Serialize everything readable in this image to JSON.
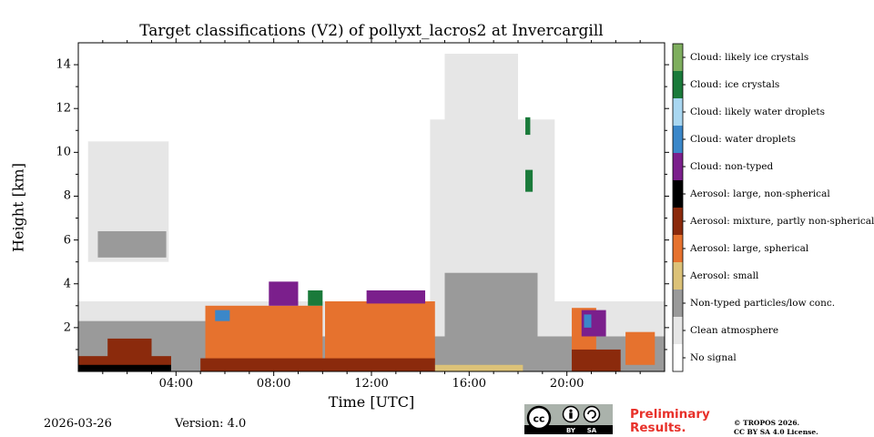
{
  "chart_data": {
    "type": "heatmap",
    "title": "Target classifications (V2) of pollyxt_lacros2 at Invercargill",
    "xlabel": "Time [UTC]",
    "ylabel": "Height [km]",
    "xlim_hours": [
      0,
      24
    ],
    "ylim_km": [
      0,
      15
    ],
    "x_ticks": [
      {
        "hour": 4,
        "label": "04:00"
      },
      {
        "hour": 8,
        "label": "08:00"
      },
      {
        "hour": 12,
        "label": "12:00"
      },
      {
        "hour": 16,
        "label": "16:00"
      },
      {
        "hour": 20,
        "label": "20:00"
      }
    ],
    "y_ticks": [
      {
        "km": 2,
        "label": "2"
      },
      {
        "km": 4,
        "label": "4"
      },
      {
        "km": 6,
        "label": "6"
      },
      {
        "km": 8,
        "label": "8"
      },
      {
        "km": 10,
        "label": "10"
      },
      {
        "km": 12,
        "label": "12"
      },
      {
        "km": 14,
        "label": "14"
      }
    ],
    "classes": [
      {
        "label": "No signal",
        "color": "#ffffff"
      },
      {
        "label": "Clean atmosphere",
        "color": "#e6e6e6"
      },
      {
        "label": "Non-typed particles/low conc.",
        "color": "#9a9a9a"
      },
      {
        "label": "Aerosol: small",
        "color": "#dcc278"
      },
      {
        "label": "Aerosol: large, spherical",
        "color": "#e6722e"
      },
      {
        "label": "Aerosol: mixture, partly non-spherical",
        "color": "#8b2a0c"
      },
      {
        "label": "Aerosol: large, non-spherical",
        "color": "#000000"
      },
      {
        "label": "Cloud: non-typed",
        "color": "#7b1f8c"
      },
      {
        "label": "Cloud: water droplets",
        "color": "#3b87c9"
      },
      {
        "label": "Cloud: likely water droplets",
        "color": "#a9d7f1"
      },
      {
        "label": "Cloud: ice crystals",
        "color": "#1a7a3a"
      },
      {
        "label": "Cloud: likely ice crystals",
        "color": "#7eae5e"
      }
    ],
    "regions": [
      {
        "class": 1,
        "t0": 0,
        "t1": 24,
        "h0": 0,
        "h1": 3.2
      },
      {
        "class": 1,
        "t0": 14.4,
        "t1": 19.5,
        "h0": 0,
        "h1": 11.5
      },
      {
        "class": 1,
        "t0": 15.0,
        "t1": 18.0,
        "h0": 9,
        "h1": 14.5
      },
      {
        "class": 1,
        "t0": 0.4,
        "t1": 3.7,
        "h0": 5,
        "h1": 10.5
      },
      {
        "class": 2,
        "t0": 0,
        "t1": 24,
        "h0": 0,
        "h1": 1.6
      },
      {
        "class": 2,
        "t0": 0,
        "t1": 5.5,
        "h0": 0,
        "h1": 2.3
      },
      {
        "class": 2,
        "t0": 0.8,
        "t1": 3.6,
        "h0": 5.2,
        "h1": 6.4
      },
      {
        "class": 2,
        "t0": 15.0,
        "t1": 18.8,
        "h0": 0.8,
        "h1": 4.5
      },
      {
        "class": 3,
        "t0": 14.6,
        "t1": 18.2,
        "h0": 0,
        "h1": 0.3
      },
      {
        "class": 4,
        "t0": 5.2,
        "t1": 10.0,
        "h0": 0.3,
        "h1": 3.0
      },
      {
        "class": 4,
        "t0": 10.1,
        "t1": 14.6,
        "h0": 0.4,
        "h1": 3.2
      },
      {
        "class": 4,
        "t0": 20.2,
        "t1": 21.2,
        "h0": 0.5,
        "h1": 2.9
      },
      {
        "class": 4,
        "t0": 22.4,
        "t1": 23.6,
        "h0": 0.3,
        "h1": 1.8
      },
      {
        "class": 5,
        "t0": 0,
        "t1": 3.8,
        "h0": 0,
        "h1": 0.7
      },
      {
        "class": 5,
        "t0": 5.0,
        "t1": 14.6,
        "h0": 0,
        "h1": 0.6
      },
      {
        "class": 5,
        "t0": 1.2,
        "t1": 3.0,
        "h0": 0.4,
        "h1": 1.5
      },
      {
        "class": 5,
        "t0": 20.2,
        "t1": 22.2,
        "h0": 0,
        "h1": 1.0
      },
      {
        "class": 6,
        "t0": 0,
        "t1": 3.8,
        "h0": 0,
        "h1": 0.3
      },
      {
        "class": 7,
        "t0": 7.8,
        "t1": 9.0,
        "h0": 3.0,
        "h1": 4.1
      },
      {
        "class": 7,
        "t0": 11.8,
        "t1": 14.2,
        "h0": 3.1,
        "h1": 3.7
      },
      {
        "class": 7,
        "t0": 20.6,
        "t1": 21.6,
        "h0": 1.6,
        "h1": 2.8
      },
      {
        "class": 8,
        "t0": 5.6,
        "t1": 6.2,
        "h0": 2.3,
        "h1": 2.8
      },
      {
        "class": 8,
        "t0": 20.7,
        "t1": 21.0,
        "h0": 2.0,
        "h1": 2.6
      },
      {
        "class": 10,
        "t0": 9.4,
        "t1": 10.0,
        "h0": 3.0,
        "h1": 3.7
      },
      {
        "class": 10,
        "t0": 18.3,
        "t1": 18.5,
        "h0": 10.8,
        "h1": 11.6
      },
      {
        "class": 10,
        "t0": 18.3,
        "t1": 18.6,
        "h0": 8.2,
        "h1": 9.2
      }
    ]
  },
  "footer": {
    "date": "2026-03-26",
    "version": "Version: 4.0",
    "preliminary_line1": "Preliminary",
    "preliminary_line2": "Results.",
    "copyright_line1": "© TROPOS 2026.",
    "copyright_line2": "CC BY SA 4.0 License.",
    "badge_by": "BY",
    "badge_sa": "SA"
  }
}
